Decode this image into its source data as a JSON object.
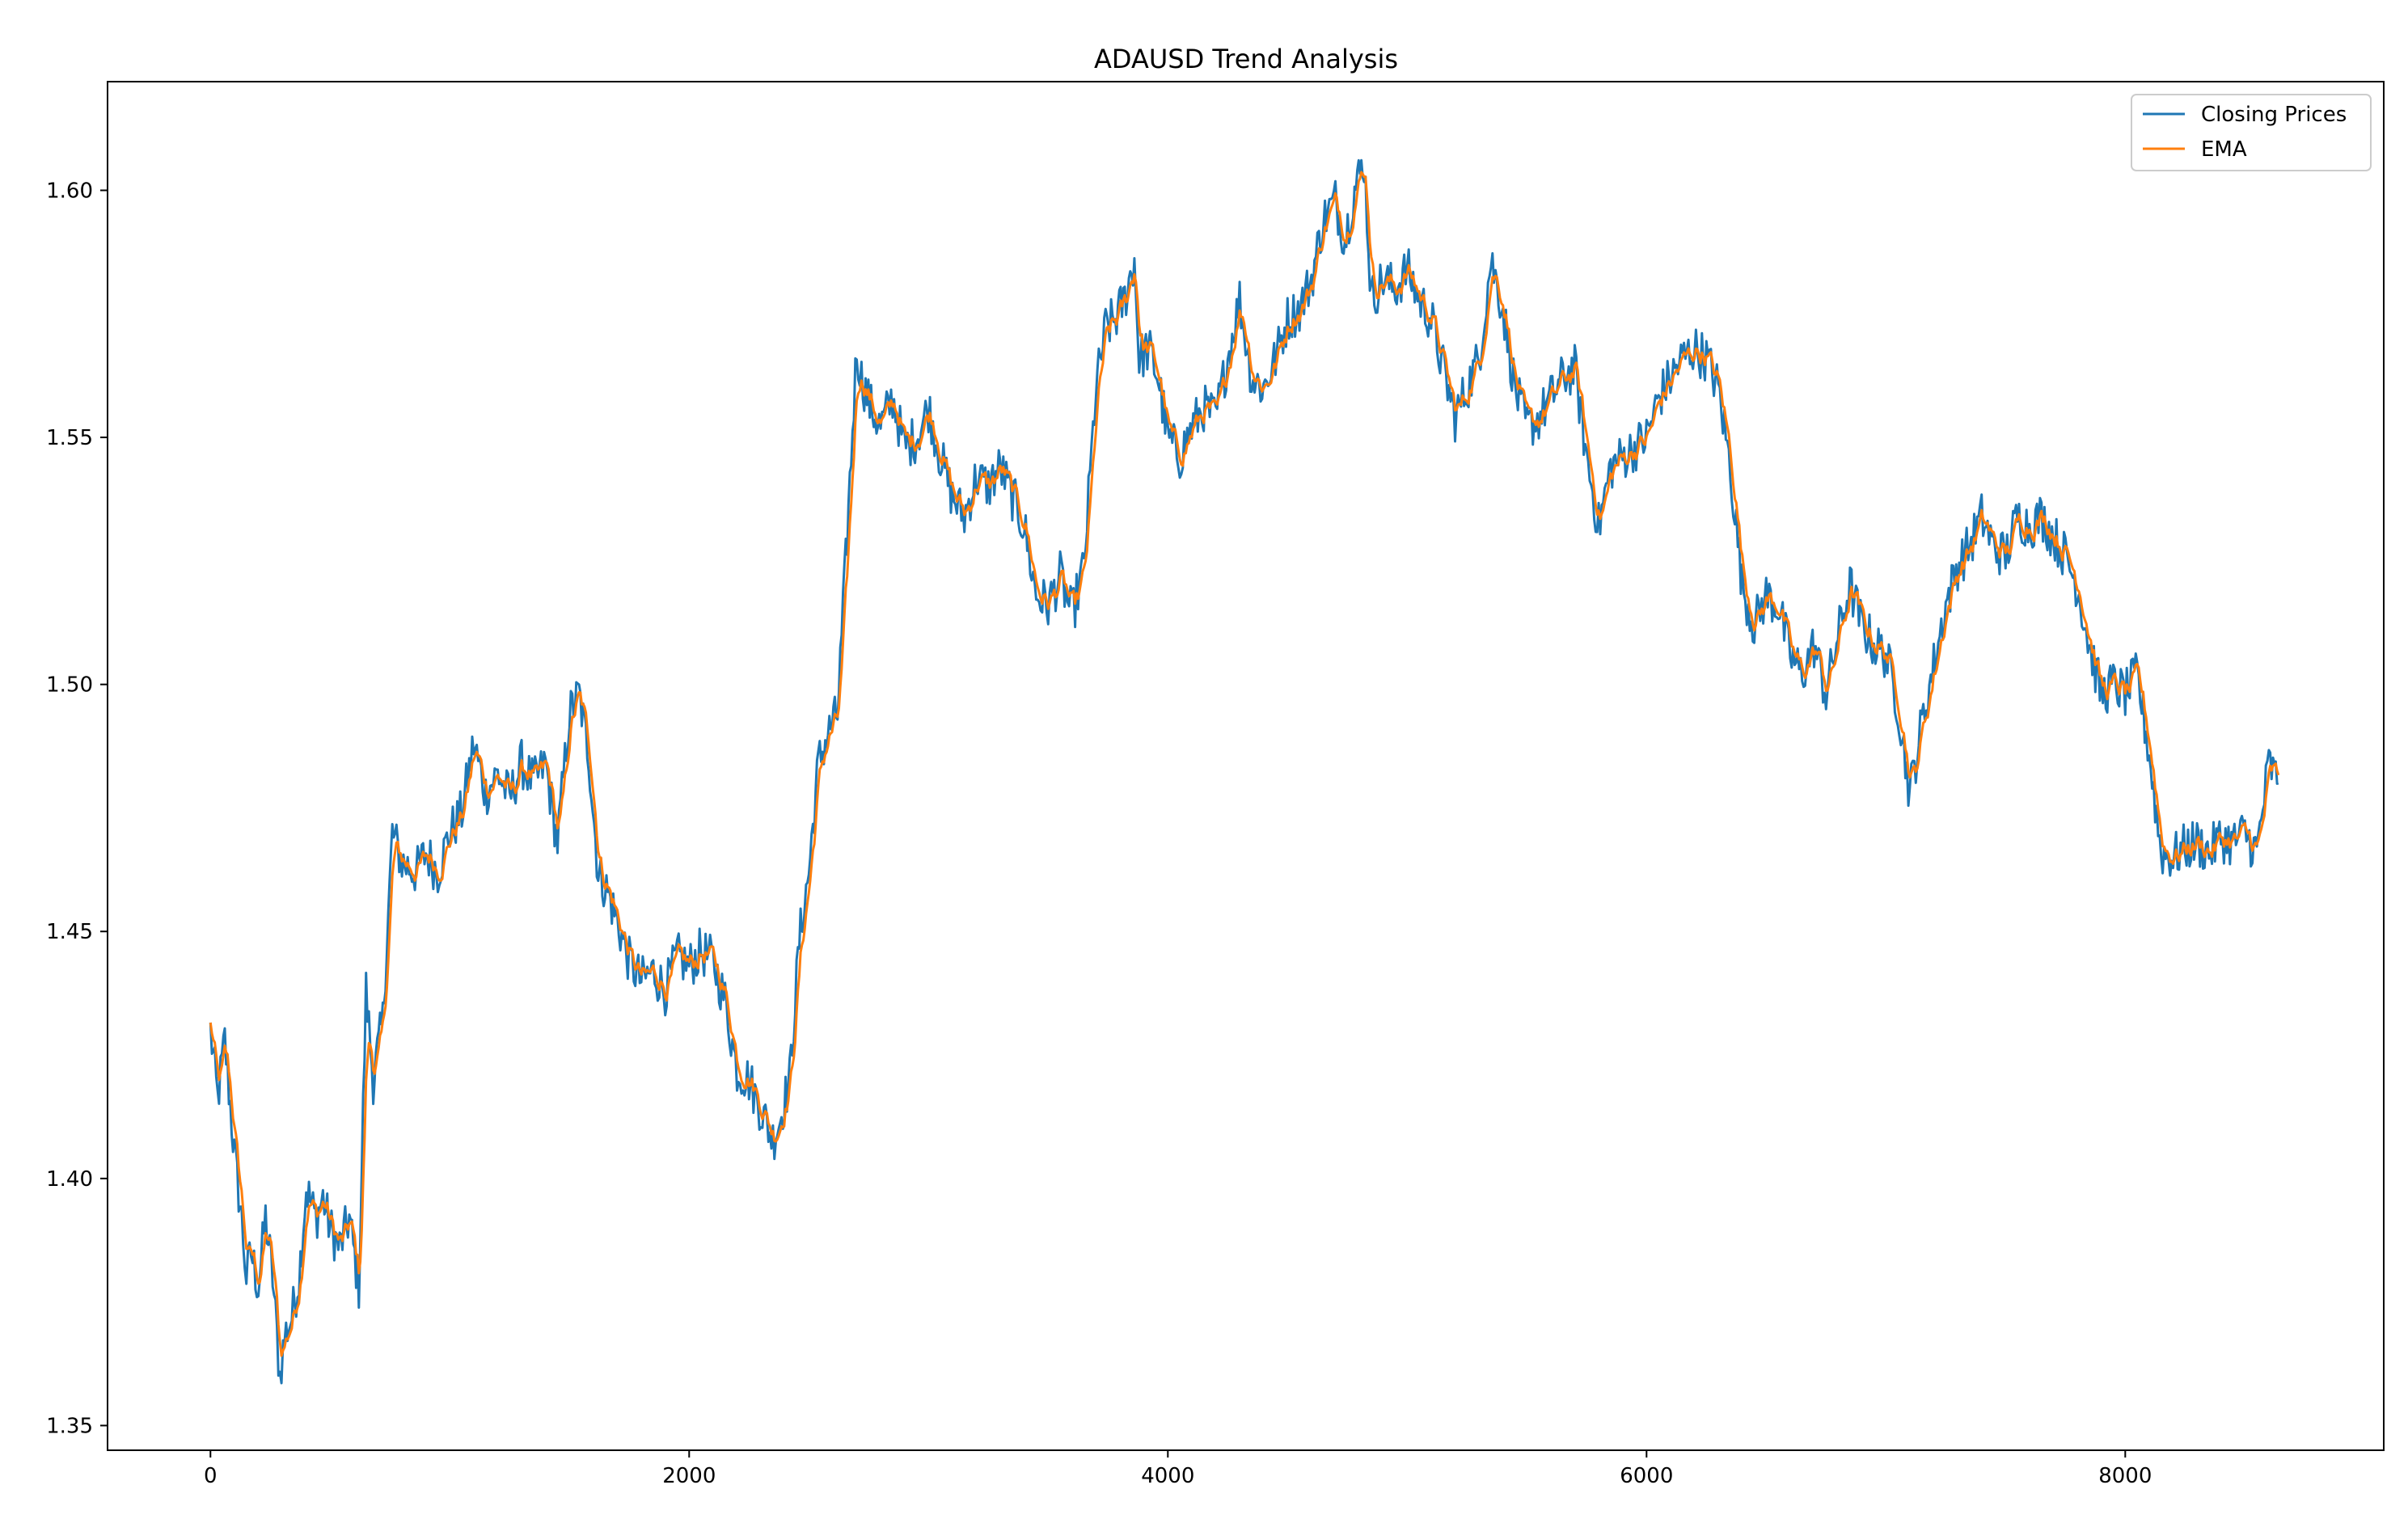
{
  "chart_data": {
    "type": "line",
    "title": "ADAUSD Trend Analysis",
    "xlabel": "",
    "ylabel": "",
    "xlim": [
      -430,
      9080
    ],
    "ylim": [
      1.345,
      1.622
    ],
    "x_ticks": [
      0,
      2000,
      4000,
      6000,
      8000
    ],
    "x_tick_labels": [
      "0",
      "2000",
      "4000",
      "6000",
      "8000"
    ],
    "y_ticks": [
      1.35,
      1.4,
      1.45,
      1.5,
      1.55,
      1.6
    ],
    "y_tick_labels": [
      "1.35",
      "1.40",
      "1.45",
      "1.50",
      "1.55",
      "1.60"
    ],
    "grid": false,
    "legend_position": "top-right",
    "series": [
      {
        "name": "Closing Prices",
        "color": "#1f77b4"
      },
      {
        "name": "EMA",
        "color": "#ff7f0e"
      }
    ],
    "x": [
      0,
      30,
      60,
      100,
      130,
      150,
      170,
      200,
      230,
      260,
      290,
      310,
      340,
      370,
      400,
      440,
      470,
      500,
      540,
      580,
      620,
      650,
      680,
      720,
      760,
      800,
      860,
      900,
      950,
      1000,
      1050,
      1100,
      1150,
      1200,
      1250,
      1300,
      1350,
      1400,
      1450,
      1500,
      1540,
      1580,
      1620,
      1660,
      1700,
      1750,
      1800,
      1850,
      1900,
      1950,
      2000,
      2050,
      2100,
      2150,
      2200,
      2250,
      2300,
      2350,
      2380,
      2420,
      2460,
      2500,
      2540,
      2580,
      2620,
      2660,
      2700,
      2720,
      2760,
      2800,
      2850,
      2900,
      2950,
      3000,
      3050,
      3100,
      3150,
      3200,
      3250,
      3300,
      3350,
      3400,
      3450,
      3500,
      3550,
      3600,
      3650,
      3700,
      3740,
      3780,
      3820,
      3860,
      3880,
      3920,
      3960,
      4000,
      4050,
      4100,
      4150,
      4200,
      4250,
      4300,
      4350,
      4400,
      4450,
      4500,
      4550,
      4600,
      4650,
      4700,
      4740,
      4780,
      4820,
      4850,
      4900,
      4950,
      5000,
      5050,
      5100,
      5150,
      5200,
      5250,
      5300,
      5350,
      5400,
      5450,
      5500,
      5550,
      5600,
      5650,
      5700,
      5750,
      5800,
      5850,
      5900,
      5950,
      6000,
      6050,
      6100,
      6150,
      6200,
      6250,
      6300,
      6350,
      6400,
      6450,
      6500,
      6550,
      6600,
      6650,
      6700,
      6750,
      6800,
      6850,
      6900,
      6950,
      7000,
      7050,
      7100,
      7150,
      7200,
      7250,
      7300,
      7350,
      7400,
      7450,
      7500,
      7550,
      7600,
      7650,
      7700,
      7750,
      7800,
      7850,
      7900,
      7950,
      8000,
      8050,
      8100,
      8150,
      8200,
      8250,
      8300,
      8350,
      8400,
      8450,
      8500,
      8550,
      8600,
      8640
    ],
    "close": [
      1.43,
      1.416,
      1.428,
      1.405,
      1.392,
      1.38,
      1.385,
      1.378,
      1.392,
      1.38,
      1.36,
      1.368,
      1.372,
      1.38,
      1.398,
      1.392,
      1.396,
      1.39,
      1.386,
      1.392,
      1.378,
      1.438,
      1.42,
      1.432,
      1.47,
      1.464,
      1.462,
      1.466,
      1.462,
      1.47,
      1.474,
      1.488,
      1.478,
      1.482,
      1.477,
      1.484,
      1.48,
      1.484,
      1.468,
      1.494,
      1.498,
      1.486,
      1.462,
      1.458,
      1.452,
      1.444,
      1.44,
      1.442,
      1.438,
      1.445,
      1.443,
      1.446,
      1.444,
      1.436,
      1.422,
      1.42,
      1.414,
      1.408,
      1.412,
      1.42,
      1.448,
      1.462,
      1.484,
      1.49,
      1.494,
      1.53,
      1.568,
      1.562,
      1.556,
      1.552,
      1.558,
      1.548,
      1.55,
      1.556,
      1.546,
      1.538,
      1.534,
      1.542,
      1.54,
      1.544,
      1.538,
      1.532,
      1.518,
      1.516,
      1.522,
      1.514,
      1.524,
      1.56,
      1.572,
      1.574,
      1.578,
      1.586,
      1.566,
      1.568,
      1.562,
      1.55,
      1.546,
      1.552,
      1.556,
      1.554,
      1.566,
      1.578,
      1.562,
      1.56,
      1.566,
      1.574,
      1.576,
      1.582,
      1.594,
      1.598,
      1.59,
      1.6,
      1.606,
      1.578,
      1.582,
      1.58,
      1.584,
      1.578,
      1.574,
      1.564,
      1.554,
      1.56,
      1.566,
      1.586,
      1.576,
      1.56,
      1.552,
      1.554,
      1.558,
      1.562,
      1.564,
      1.546,
      1.532,
      1.544,
      1.546,
      1.548,
      1.55,
      1.558,
      1.562,
      1.566,
      1.568,
      1.566,
      1.56,
      1.544,
      1.52,
      1.512,
      1.518,
      1.516,
      1.506,
      1.502,
      1.508,
      1.498,
      1.51,
      1.52,
      1.512,
      1.508,
      1.506,
      1.496,
      1.478,
      1.492,
      1.504,
      1.516,
      1.524,
      1.528,
      1.534,
      1.528,
      1.526,
      1.534,
      1.532,
      1.534,
      1.53,
      1.526,
      1.52,
      1.508,
      1.498,
      1.5,
      1.498,
      1.502,
      1.486,
      1.466,
      1.465,
      1.467,
      1.468,
      1.466,
      1.469,
      1.468,
      1.47,
      1.466,
      1.484,
      1.48
    ],
    "ema": [
      1.431,
      1.418,
      1.426,
      1.406,
      1.393,
      1.382,
      1.384,
      1.379,
      1.39,
      1.381,
      1.363,
      1.367,
      1.371,
      1.379,
      1.396,
      1.393,
      1.395,
      1.391,
      1.387,
      1.391,
      1.38,
      1.436,
      1.421,
      1.431,
      1.468,
      1.464,
      1.463,
      1.465,
      1.463,
      1.469,
      1.473,
      1.486,
      1.479,
      1.481,
      1.478,
      1.483,
      1.48,
      1.483,
      1.469,
      1.493,
      1.497,
      1.487,
      1.463,
      1.459,
      1.453,
      1.445,
      1.441,
      1.442,
      1.439,
      1.444,
      1.443,
      1.445,
      1.444,
      1.437,
      1.423,
      1.42,
      1.415,
      1.409,
      1.412,
      1.419,
      1.447,
      1.461,
      1.483,
      1.489,
      1.493,
      1.528,
      1.566,
      1.562,
      1.556,
      1.553,
      1.557,
      1.549,
      1.55,
      1.555,
      1.547,
      1.539,
      1.535,
      1.541,
      1.54,
      1.543,
      1.538,
      1.533,
      1.519,
      1.517,
      1.521,
      1.515,
      1.523,
      1.558,
      1.571,
      1.573,
      1.577,
      1.584,
      1.567,
      1.568,
      1.562,
      1.551,
      1.547,
      1.551,
      1.555,
      1.554,
      1.565,
      1.576,
      1.563,
      1.561,
      1.565,
      1.573,
      1.576,
      1.581,
      1.592,
      1.596,
      1.591,
      1.598,
      1.604,
      1.58,
      1.582,
      1.58,
      1.583,
      1.578,
      1.574,
      1.565,
      1.555,
      1.56,
      1.565,
      1.584,
      1.576,
      1.561,
      1.553,
      1.554,
      1.557,
      1.561,
      1.563,
      1.547,
      1.534,
      1.543,
      1.545,
      1.547,
      1.549,
      1.557,
      1.561,
      1.565,
      1.567,
      1.566,
      1.56,
      1.545,
      1.522,
      1.513,
      1.517,
      1.516,
      1.507,
      1.503,
      1.507,
      1.499,
      1.509,
      1.519,
      1.512,
      1.508,
      1.506,
      1.497,
      1.479,
      1.491,
      1.503,
      1.515,
      1.523,
      1.527,
      1.533,
      1.528,
      1.526,
      1.533,
      1.532,
      1.533,
      1.53,
      1.526,
      1.52,
      1.509,
      1.499,
      1.5,
      1.498,
      1.501,
      1.487,
      1.467,
      1.466,
      1.467,
      1.468,
      1.466,
      1.468,
      1.468,
      1.469,
      1.467,
      1.482,
      1.48
    ]
  }
}
